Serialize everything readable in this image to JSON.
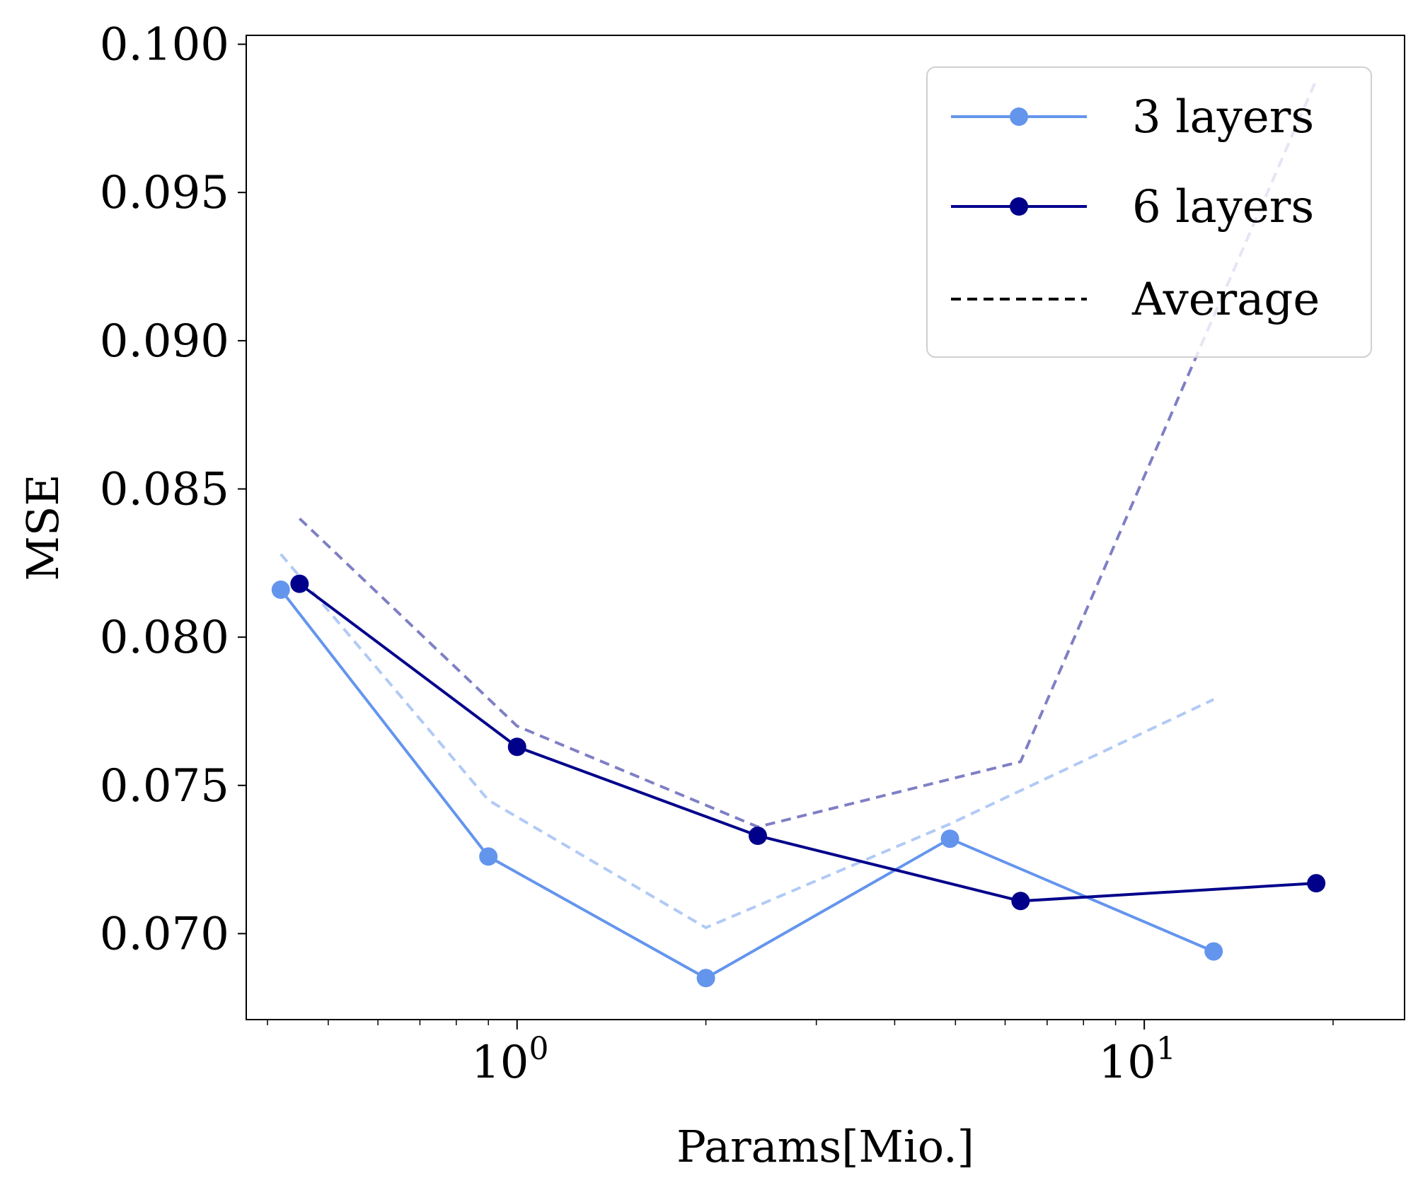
{
  "chart_data": {
    "type": "line",
    "title": "",
    "xlabel": "Params[Mio.]",
    "ylabel": "MSE",
    "xscale": "log",
    "xlim": [
      0.37,
      26
    ],
    "ylim": [
      0.0671,
      0.1003
    ],
    "x_ticks": [
      {
        "value": 1,
        "base": "10",
        "exp": "0"
      },
      {
        "value": 10,
        "base": "10",
        "exp": "1"
      }
    ],
    "y_ticks": [
      "0.070",
      "0.075",
      "0.080",
      "0.085",
      "0.090",
      "0.095",
      "0.100"
    ],
    "grid": false,
    "legend": {
      "position": "top-right",
      "entries": [
        {
          "label": "3 layers",
          "color": "#6495ed",
          "style": "solid-marker"
        },
        {
          "label": "6 layers",
          "color": "#00008b",
          "style": "solid-marker"
        },
        {
          "label": "Average",
          "color": "#000000",
          "style": "dashed"
        }
      ]
    },
    "series": [
      {
        "name": "3 layers",
        "color": "#6495ed",
        "x": [
          0.42,
          0.9,
          2.0,
          4.9,
          12.9
        ],
        "y": [
          0.0816,
          0.0726,
          0.0685,
          0.0732,
          0.0694
        ]
      },
      {
        "name": "6 layers",
        "color": "#00008b",
        "x": [
          0.45,
          1.0,
          2.42,
          6.35,
          18.8
        ],
        "y": [
          0.0818,
          0.0763,
          0.0733,
          0.0711,
          0.0717
        ]
      }
    ],
    "averages": [
      {
        "of": "3 layers",
        "color": "#6495ed",
        "opacity": 0.5,
        "x": [
          0.42,
          0.9,
          2.0,
          4.9,
          12.9
        ],
        "y": [
          0.0828,
          0.0745,
          0.0702,
          0.0737,
          0.0779
        ]
      },
      {
        "of": "6 layers",
        "color": "#00008b",
        "opacity": 0.5,
        "x": [
          0.45,
          1.0,
          2.42,
          6.35,
          18.8
        ],
        "y": [
          0.084,
          0.077,
          0.0736,
          0.0758,
          0.0988
        ]
      }
    ]
  }
}
